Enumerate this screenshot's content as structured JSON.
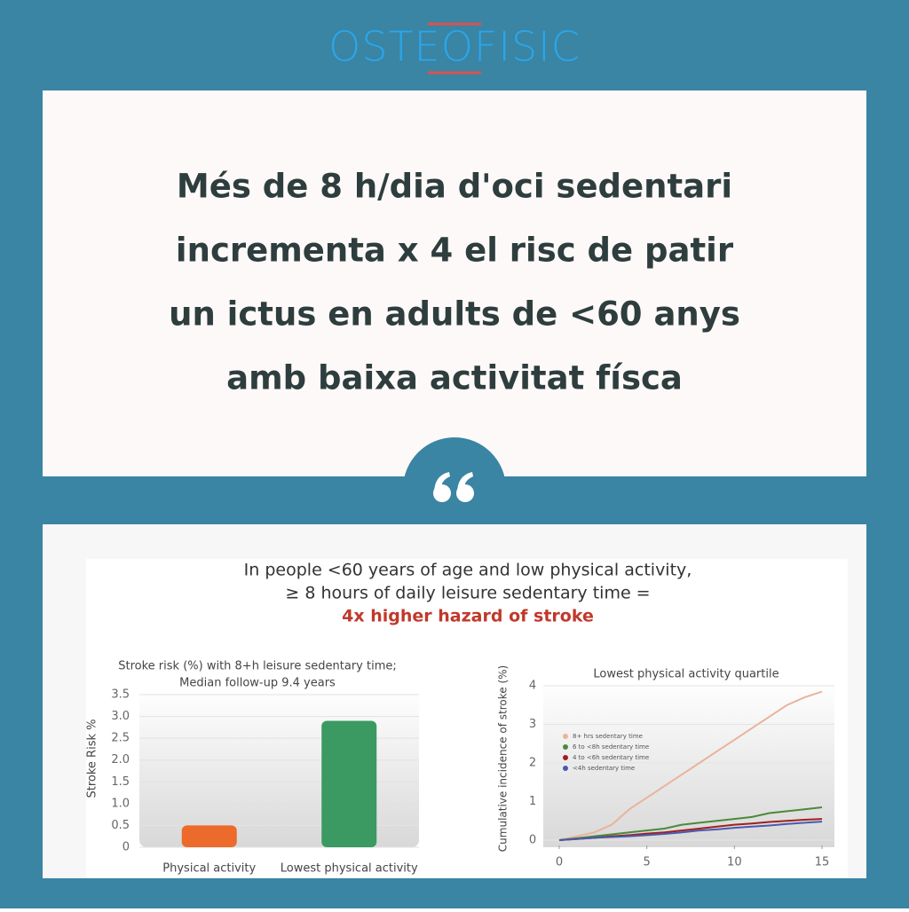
{
  "logo": "OSTEOFISIC",
  "headline": [
    "Més de 8 h/dia d'oci sedentari",
    "incrementa x 4 el risc de patir",
    "un ictus en adults de <60 anys",
    "amb baixa activitat físca"
  ],
  "figure": {
    "lines": [
      "In people <60 years of age and low physical activity,",
      "≥ 8 hours of daily leisure sedentary time  ="
    ],
    "highlight": "4x higher hazard of stroke"
  },
  "chart_data": [
    {
      "type": "bar",
      "title": [
        "Stroke risk (%) with 8+h leisure sedentary time;",
        "Median follow-up 9.4 years"
      ],
      "y_label": "Stroke Risk %",
      "categories": [
        "Physical activity",
        "Lowest physical activity"
      ],
      "values": [
        0.5,
        2.9
      ],
      "colors": [
        "#ec6a2c",
        "#3a9a62"
      ],
      "ylim": [
        0,
        3.5
      ],
      "yticks": [
        0,
        0.5,
        {
          "value": 1,
          "label": "1.0"
        },
        1.5,
        {
          "value": 2,
          "label": "2.0"
        },
        2.5,
        {
          "value": 3,
          "label": "3.0"
        },
        3.5
      ],
      "grid": true
    },
    {
      "type": "line",
      "title": "Lowest physical activity quartile",
      "y_label": "Cumulative incidence of stroke (%)",
      "x": [
        0,
        1,
        2,
        3,
        4,
        5,
        6,
        7,
        8,
        9,
        10,
        11,
        12,
        13,
        14,
        15
      ],
      "series": [
        {
          "name": "8+ hrs sedentary time",
          "color": "#e8b49a",
          "values": [
            0,
            0.1,
            0.2,
            0.4,
            0.8,
            1.1,
            1.4,
            1.7,
            2.0,
            2.3,
            2.6,
            2.9,
            3.2,
            3.5,
            3.7,
            3.85
          ]
        },
        {
          "name": "6 to <8h sedentary time",
          "color": "#4a8a3a",
          "values": [
            0,
            0.05,
            0.1,
            0.15,
            0.2,
            0.25,
            0.3,
            0.4,
            0.45,
            0.5,
            0.55,
            0.6,
            0.7,
            0.75,
            0.8,
            0.85
          ]
        },
        {
          "name": "4 to <6h sedentary time",
          "color": "#a02020",
          "values": [
            0,
            0.03,
            0.06,
            0.1,
            0.13,
            0.17,
            0.2,
            0.25,
            0.3,
            0.35,
            0.4,
            0.43,
            0.47,
            0.5,
            0.53,
            0.55
          ]
        },
        {
          "name": "<4h sedentary time",
          "color": "#4a5ab0",
          "values": [
            0,
            0.03,
            0.06,
            0.08,
            0.1,
            0.13,
            0.16,
            0.2,
            0.25,
            0.28,
            0.32,
            0.35,
            0.38,
            0.42,
            0.45,
            0.48
          ]
        }
      ],
      "xlim": [
        0,
        15
      ],
      "xticks": [
        0,
        5,
        10,
        15
      ],
      "ylim": [
        0,
        4
      ],
      "yticks": [
        0,
        1,
        2,
        3,
        4
      ],
      "grid": true
    }
  ]
}
